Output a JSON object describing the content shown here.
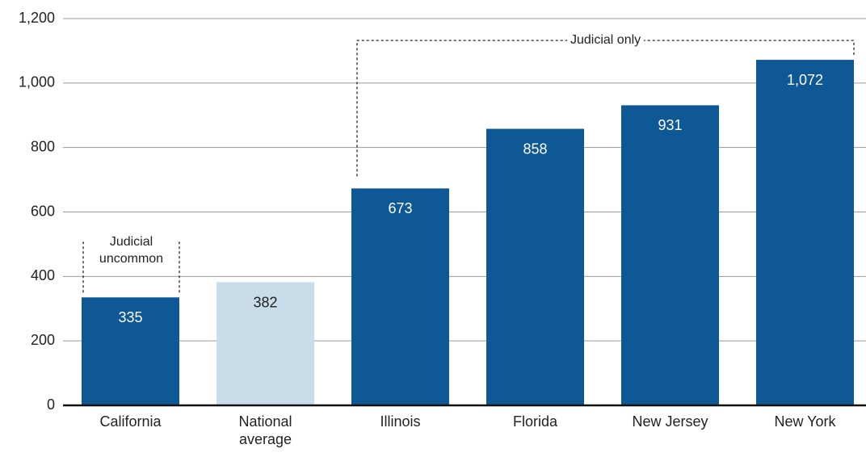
{
  "chart_data": {
    "type": "bar",
    "categories": [
      "California",
      "National average",
      "Illinois",
      "Florida",
      "New Jersey",
      "New York"
    ],
    "values": [
      335,
      382,
      673,
      858,
      931,
      1072
    ],
    "value_labels": [
      "335",
      "382",
      "673",
      "858",
      "931",
      "1,072"
    ],
    "colors": [
      "#0e5896",
      "#c8dce9",
      "#0e5896",
      "#0e5896",
      "#0e5896",
      "#0e5896"
    ],
    "ylim": [
      0,
      1200
    ],
    "yticks": [
      0,
      200,
      400,
      600,
      800,
      {
        "value": 1000,
        "label": "1,000"
      },
      {
        "value": 1200,
        "label": "1,200"
      }
    ],
    "grid": true,
    "annotations": [
      {
        "text": "Judicial uncommon",
        "from": "California",
        "to": "California"
      },
      {
        "text": "Judicial only",
        "from": "Illinois",
        "to": "New York"
      }
    ]
  }
}
